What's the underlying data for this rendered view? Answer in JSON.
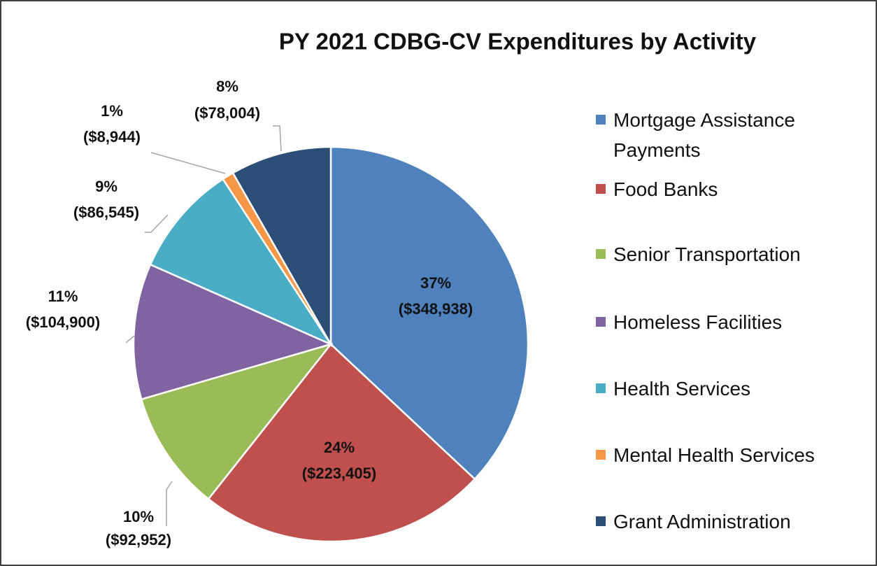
{
  "chart_data": {
    "type": "pie",
    "title": "PY 2021 CDBG-CV Expenditures by Activity",
    "categories": [
      "Mortgage Assistance Payments",
      "Food Banks",
      "Senior Transportation",
      "Homeless Facilities",
      "Health Services",
      "Mental Health Services",
      "Grant Administration"
    ],
    "values": [
      348938,
      223405,
      92952,
      104900,
      86545,
      8944,
      78004
    ],
    "value_labels": [
      "($348,938)",
      "($223,405)",
      "($92,952)",
      "($104,900)",
      "($86,545)",
      "($8,944)",
      "($78,004)"
    ],
    "percent_labels": [
      "37%",
      "24%",
      "10%",
      "11%",
      "9%",
      "1%",
      "8%"
    ],
    "colors": [
      "#4f81bd",
      "#c0504d",
      "#9bbb59",
      "#8064a2",
      "#4bacc6",
      "#f79646",
      "#2c4d75"
    ],
    "legend": "right"
  }
}
